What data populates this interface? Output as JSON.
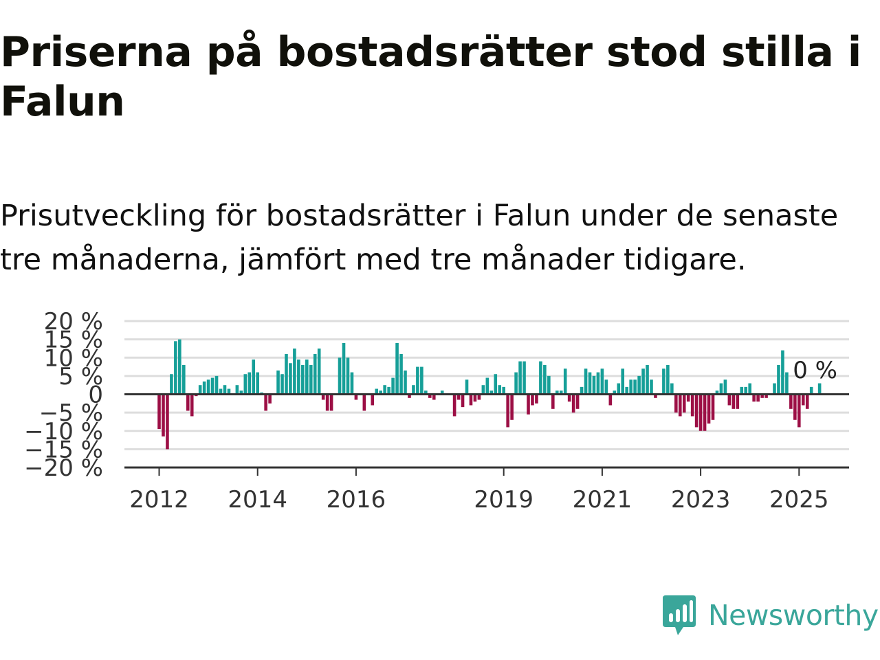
{
  "title": "Priserna på bostadsrätter stod stilla i Falun",
  "subtitle": "Prisutveckling för bostadsrätter i Falun under de senaste tre månaderna, jämfört med tre månader tidigare.",
  "brand": {
    "name": "Newsworthy",
    "icon": "newsworthy-logo-icon",
    "color": "#3aa69a"
  },
  "colors": {
    "positive": "#169f98",
    "negative": "#9c0f45",
    "grid": "#dddddd",
    "zero_line": "#333333"
  },
  "chart_data": {
    "type": "bar",
    "ylim": [
      -20,
      20
    ],
    "y_ticks": [
      {
        "value": 20,
        "label": "20 %"
      },
      {
        "value": 15,
        "label": "15 %"
      },
      {
        "value": 10,
        "label": "10 %"
      },
      {
        "value": 5,
        "label": "5 %"
      },
      {
        "value": 0,
        "label": "0"
      },
      {
        "value": -5,
        "label": "−5 %"
      },
      {
        "value": -10,
        "label": "−10 %"
      },
      {
        "value": -15,
        "label": "−15 %"
      },
      {
        "value": -20,
        "label": "−20 %"
      }
    ],
    "x_ticks": [
      {
        "date": "2012-01",
        "label": "2012"
      },
      {
        "date": "2014-01",
        "label": "2014"
      },
      {
        "date": "2016-01",
        "label": "2016"
      },
      {
        "date": "2019-01",
        "label": "2019"
      },
      {
        "date": "2021-01",
        "label": "2021"
      },
      {
        "date": "2023-01",
        "label": "2023"
      },
      {
        "date": "2025-01",
        "label": "2025"
      }
    ],
    "grid": true,
    "annotation": {
      "date": "2025-04",
      "label": "0 %"
    },
    "series": [
      {
        "start": "2012-01",
        "values": [
          -9.5,
          -11.5,
          -15,
          5.5,
          14.5,
          15,
          8,
          -4.5,
          -6,
          -0.5,
          2.5,
          3.5,
          4,
          4.5,
          5,
          1.5,
          2.5,
          1.5,
          0,
          2.5,
          1,
          5.5,
          6,
          9.5,
          6,
          0.5,
          -4.5,
          -2.5,
          0,
          6.5,
          5.5,
          11,
          8.5,
          12.5,
          9.5,
          8,
          9.5,
          8,
          11,
          12.5,
          -1.5,
          -4.5,
          -4.5,
          0,
          10,
          14,
          10,
          6,
          -1.5,
          0,
          -4.5,
          0,
          -3,
          1.5,
          1,
          2.5,
          2,
          4.5,
          14,
          11,
          6.5,
          -1,
          2.5,
          7.5,
          7.5,
          1,
          -1,
          -1.5,
          0,
          1,
          0,
          0,
          -6,
          -1.5,
          -3.5,
          4,
          -3,
          -2,
          -1.5,
          2.5,
          4.5,
          1,
          5.5,
          2.5,
          2,
          -9,
          -7,
          6,
          9,
          9,
          -5.5,
          -3,
          -2.5,
          9,
          8,
          5,
          -4,
          1,
          1,
          7,
          -2,
          -5,
          -4,
          2,
          7,
          6,
          5,
          6,
          7,
          4,
          -3,
          1,
          3,
          7,
          2,
          4,
          4,
          5,
          7,
          8,
          4,
          -1,
          0,
          7,
          8,
          3,
          -5,
          -6,
          -5,
          -2,
          -6,
          -9,
          -10,
          -10,
          -8,
          -7,
          1,
          3,
          4,
          -3,
          -4,
          -4,
          2,
          2,
          3,
          -2,
          -2,
          -1,
          -1,
          0,
          3,
          8,
          12,
          6,
          -4,
          -7,
          -9,
          -3,
          -4,
          2,
          0,
          3
        ]
      }
    ]
  }
}
